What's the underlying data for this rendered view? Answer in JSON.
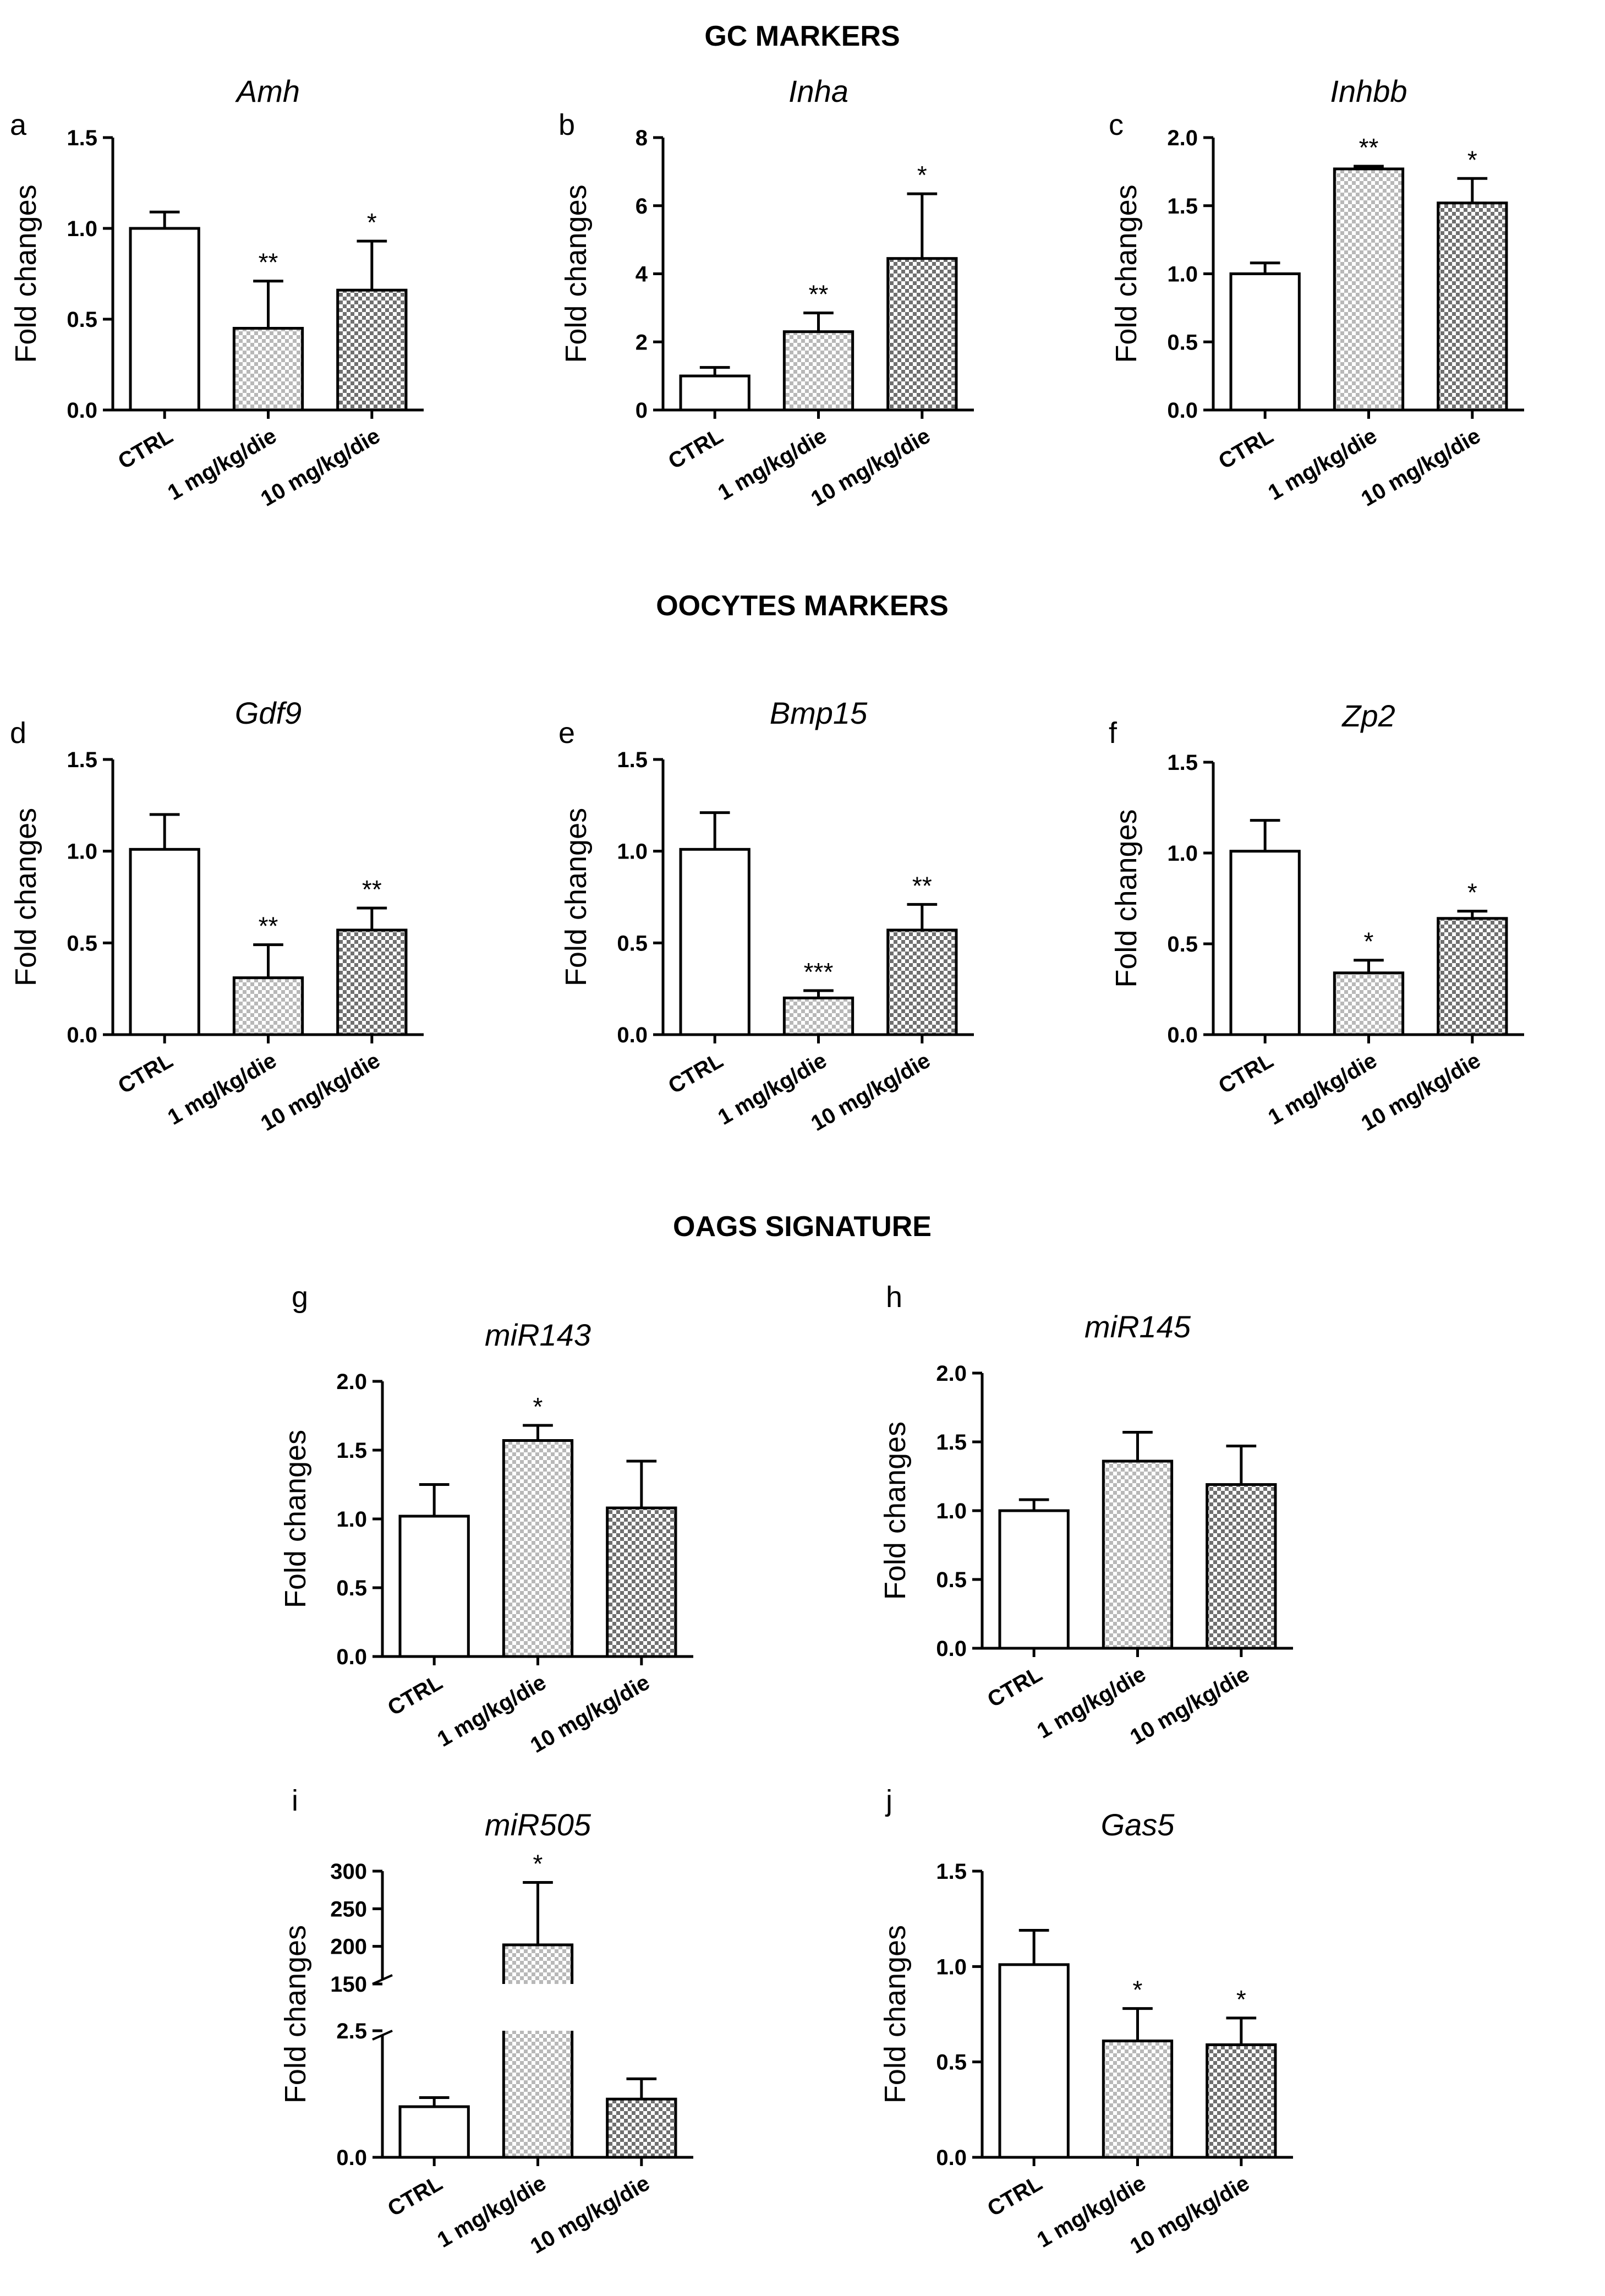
{
  "section_titles": {
    "gc": "GC MARKERS",
    "oocytes": "OOCYTES MARKERS",
    "oags": "OAGS SIGNATURE"
  },
  "colors": {
    "ink": "#000000",
    "background": "#ffffff",
    "bar_1mg": "#c9c9c9",
    "bar_10mg": "#8f8f8f"
  },
  "chart_data": [
    {
      "id": "a",
      "letter": "a",
      "title": "Amh",
      "type": "bar",
      "ylabel": "Fold changes",
      "ylim": [
        0,
        1.5
      ],
      "yticks": [
        "0.0",
        "0.5",
        "1.0",
        "1.5"
      ],
      "categories": [
        "CTRL",
        "1 mg/kg/die",
        "10 mg/kg/die"
      ],
      "values": [
        1.0,
        0.45,
        0.66
      ],
      "errors": [
        0.09,
        0.26,
        0.27
      ],
      "significance": [
        "",
        "**",
        "*"
      ]
    },
    {
      "id": "b",
      "letter": "b",
      "title": "Inha",
      "type": "bar",
      "ylabel": "Fold changes",
      "ylim": [
        0,
        8
      ],
      "yticks": [
        "0",
        "2",
        "4",
        "6",
        "8"
      ],
      "categories": [
        "CTRL",
        "1 mg/kg/die",
        "10 mg/kg/die"
      ],
      "values": [
        1.0,
        2.3,
        4.45
      ],
      "errors": [
        0.25,
        0.55,
        1.9
      ],
      "significance": [
        "",
        "**",
        "*"
      ]
    },
    {
      "id": "c",
      "letter": "c",
      "title": "Inhbb",
      "type": "bar",
      "ylabel": "Fold changes",
      "ylim": [
        0,
        2.0
      ],
      "yticks": [
        "0.0",
        "0.5",
        "1.0",
        "1.5",
        "2.0"
      ],
      "categories": [
        "CTRL",
        "1 mg/kg/die",
        "10 mg/kg/die"
      ],
      "values": [
        1.0,
        1.77,
        1.52
      ],
      "errors": [
        0.08,
        0.02,
        0.18
      ],
      "significance": [
        "",
        "**",
        "*"
      ]
    },
    {
      "id": "d",
      "letter": "d",
      "title": "Gdf9",
      "type": "bar",
      "ylabel": "Fold changes",
      "ylim": [
        0,
        1.5
      ],
      "yticks": [
        "0.0",
        "0.5",
        "1.0",
        "1.5"
      ],
      "categories": [
        "CTRL",
        "1 mg/kg/die",
        "10 mg/kg/die"
      ],
      "values": [
        1.01,
        0.31,
        0.57
      ],
      "errors": [
        0.19,
        0.18,
        0.12
      ],
      "significance": [
        "",
        "**",
        "**"
      ]
    },
    {
      "id": "e",
      "letter": "e",
      "title": "Bmp15",
      "type": "bar",
      "ylabel": "Fold changes",
      "ylim": [
        0,
        1.5
      ],
      "yticks": [
        "0.0",
        "0.5",
        "1.0",
        "1.5"
      ],
      "categories": [
        "CTRL",
        "1 mg/kg/die",
        "10 mg/kg/die"
      ],
      "values": [
        1.01,
        0.2,
        0.57
      ],
      "errors": [
        0.2,
        0.04,
        0.14
      ],
      "significance": [
        "",
        "***",
        "**"
      ]
    },
    {
      "id": "f",
      "letter": "f",
      "title": "Zp2",
      "type": "bar",
      "ylabel": "Fold changes",
      "ylim": [
        0,
        1.5
      ],
      "yticks": [
        "0.0",
        "0.5",
        "1.0",
        "1.5"
      ],
      "categories": [
        "CTRL",
        "1 mg/kg/die",
        "10 mg/kg/die"
      ],
      "values": [
        1.01,
        0.34,
        0.64
      ],
      "errors": [
        0.17,
        0.07,
        0.04
      ],
      "significance": [
        "",
        "*",
        "*"
      ]
    },
    {
      "id": "g",
      "letter": "g",
      "title": "miR143",
      "type": "bar",
      "ylabel": "Fold changes",
      "ylim": [
        0,
        2.0
      ],
      "yticks": [
        "0.0",
        "0.5",
        "1.0",
        "1.5",
        "2.0"
      ],
      "categories": [
        "CTRL",
        "1 mg/kg/die",
        "10 mg/kg/die"
      ],
      "values": [
        1.02,
        1.57,
        1.08
      ],
      "errors": [
        0.23,
        0.11,
        0.34
      ],
      "significance": [
        "",
        "*",
        ""
      ]
    },
    {
      "id": "h",
      "letter": "h",
      "title": "miR145",
      "type": "bar",
      "ylabel": "Fold changes",
      "ylim": [
        0,
        2.0
      ],
      "yticks": [
        "0.0",
        "0.5",
        "1.0",
        "1.5",
        "2.0"
      ],
      "categories": [
        "CTRL",
        "1 mg/kg/die",
        "10 mg/kg/die"
      ],
      "values": [
        1.0,
        1.36,
        1.19
      ],
      "errors": [
        0.08,
        0.21,
        0.28
      ],
      "significance": [
        "",
        "",
        ""
      ]
    },
    {
      "id": "i",
      "letter": "i",
      "title": "miR505",
      "type": "bar",
      "ylabel": "Fold changes",
      "broken_axis": true,
      "lower_range": [
        0,
        2.5
      ],
      "upper_range": [
        150,
        300
      ],
      "yticks_lower": [
        "0.0",
        "2.5"
      ],
      "yticks_upper": [
        "150",
        "200",
        "250",
        "300"
      ],
      "categories": [
        "CTRL",
        "1 mg/kg/die",
        "10 mg/kg/die"
      ],
      "values": [
        1.0,
        202,
        1.15
      ],
      "errors": [
        0.18,
        83,
        0.4
      ],
      "significance": [
        "",
        "*",
        ""
      ]
    },
    {
      "id": "j",
      "letter": "j",
      "title": "Gas5",
      "type": "bar",
      "ylabel": "Fold changes",
      "ylim": [
        0,
        1.5
      ],
      "yticks": [
        "0.0",
        "0.5",
        "1.0",
        "1.5"
      ],
      "categories": [
        "CTRL",
        "1 mg/kg/die",
        "10 mg/kg/die"
      ],
      "values": [
        1.01,
        0.61,
        0.59
      ],
      "errors": [
        0.18,
        0.17,
        0.14
      ],
      "significance": [
        "",
        "*",
        "*"
      ]
    }
  ]
}
